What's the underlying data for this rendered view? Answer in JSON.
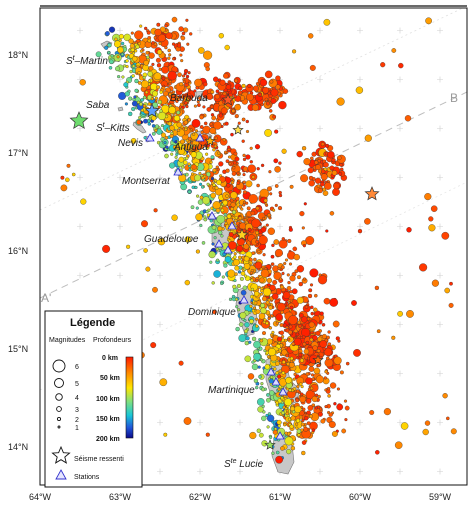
{
  "map": {
    "latitudes": [
      {
        "label": "18°N",
        "lat": 18
      },
      {
        "label": "17°N",
        "lat": 17
      },
      {
        "label": "16°N",
        "lat": 16
      },
      {
        "label": "15°N",
        "lat": 15
      },
      {
        "label": "14°N",
        "lat": 14
      }
    ],
    "longitudes": [
      {
        "label": "64°W",
        "lon": -64
      },
      {
        "label": "63°W",
        "lon": -63
      },
      {
        "label": "62°W",
        "lon": -62
      },
      {
        "label": "61°W",
        "lon": -61
      },
      {
        "label": "60°W",
        "lon": -60
      },
      {
        "label": "59°W",
        "lon": -59
      }
    ],
    "islands": [
      {
        "name": "St-Martin",
        "label_sup": "t",
        "label_pre": "S",
        "label_post": "–Martin"
      },
      {
        "name": "Saba",
        "label": "Saba"
      },
      {
        "name": "St-Kitts",
        "label_pre": "S",
        "label_sup": "t",
        "label_post": "–Kitts"
      },
      {
        "name": "Nevis",
        "label": "Nevis"
      },
      {
        "name": "Barbuda",
        "label": "Barbuda"
      },
      {
        "name": "Antigua",
        "label": "Antigua"
      },
      {
        "name": "Montserrat",
        "label": "Montserrat"
      },
      {
        "name": "Guadeloupe",
        "label": "Guadeloupe"
      },
      {
        "name": "Dominique",
        "label": "Dominique"
      },
      {
        "name": "Martinique",
        "label": "Martinique"
      },
      {
        "name": "Ste-Lucie",
        "label_pre": "S",
        "label_sup": "te",
        "label_post": " Lucie"
      }
    ],
    "profile": {
      "start_label": "A'",
      "end_label": "B"
    }
  },
  "legend": {
    "title": "Légende",
    "magnitudes_label": "Magnitudes",
    "depths_label": "Profondeurs",
    "magnitudes": [
      "6",
      "5",
      "4",
      "3",
      "2",
      "1"
    ],
    "depth_ticks": [
      "0 km",
      "50 km",
      "100 km",
      "150 km",
      "200 km"
    ],
    "felt_quake_label": "Séisme ressenti",
    "stations_label": "Stations",
    "colors": {
      "shallow": "#d7301f",
      "mid": "#ffd21f",
      "deep": "#1a1aa6"
    }
  }
}
